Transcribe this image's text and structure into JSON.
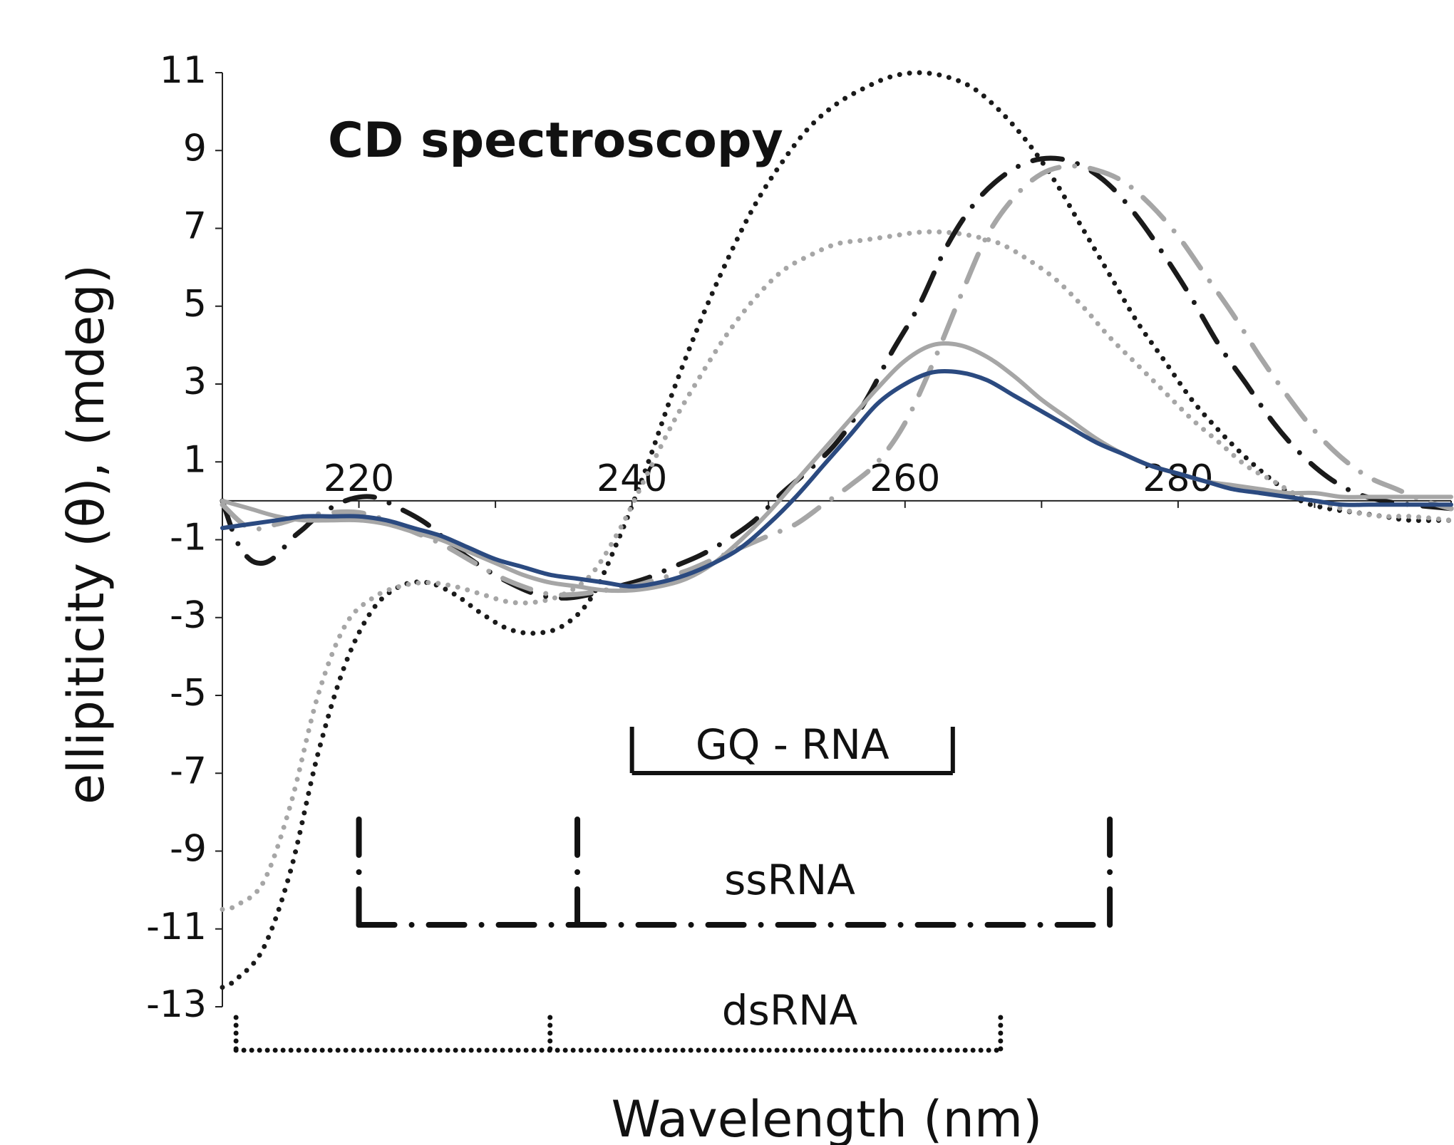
{
  "chart_data": {
    "type": "line",
    "title": "CD spectroscopy",
    "xlabel": "Wavelength (nm)",
    "ylabel": "ellipiticity (θ),  (mdeg)",
    "xlim": [
      210,
      300
    ],
    "ylim": [
      -13,
      11
    ],
    "x_ticks": [
      220,
      240,
      260,
      280
    ],
    "y_ticks": [
      11,
      9,
      7,
      5,
      3,
      1,
      -1,
      -3,
      -5,
      -7,
      -9,
      -11,
      -13
    ],
    "grid": false,
    "series": [
      {
        "name": "dsRNA (black dotted)",
        "style": "dotted",
        "color": "#1a1a1a",
        "x": [
          210,
          211,
          213,
          215,
          217,
          219,
          221,
          223,
          225,
          227,
          229,
          231,
          233,
          235,
          237,
          239,
          241,
          243,
          245,
          247,
          249,
          251,
          253,
          255,
          257,
          259,
          261,
          263,
          265,
          267,
          269,
          271,
          273,
          275,
          277,
          279,
          281,
          283,
          285,
          287,
          289,
          291,
          293,
          295,
          297,
          300
        ],
        "y": [
          -12.5,
          -12.3,
          -11.5,
          -9.5,
          -6.5,
          -4.2,
          -2.8,
          -2.2,
          -2.1,
          -2.4,
          -2.9,
          -3.3,
          -3.4,
          -3.2,
          -2.5,
          -1.0,
          0.8,
          2.8,
          4.6,
          6.2,
          7.6,
          8.7,
          9.6,
          10.2,
          10.6,
          10.9,
          11.0,
          10.9,
          10.6,
          10.0,
          9.2,
          8.2,
          7.0,
          5.8,
          4.6,
          3.6,
          2.6,
          1.8,
          1.1,
          0.5,
          0.0,
          -0.2,
          -0.3,
          -0.4,
          -0.5,
          -0.5
        ]
      },
      {
        "name": "dsRNA (grey dotted)",
        "style": "dotted",
        "color": "#a6a6a6",
        "x": [
          210,
          211,
          213,
          215,
          217,
          219,
          221,
          223,
          225,
          227,
          229,
          231,
          233,
          235,
          237,
          239,
          241,
          243,
          245,
          247,
          249,
          251,
          253,
          255,
          257,
          259,
          261,
          263,
          265,
          267,
          269,
          271,
          273,
          275,
          277,
          279,
          281,
          283,
          285,
          287,
          289,
          291,
          293,
          295,
          297,
          300
        ],
        "y": [
          -10.5,
          -10.4,
          -9.8,
          -7.8,
          -5.0,
          -3.2,
          -2.5,
          -2.2,
          -2.1,
          -2.2,
          -2.4,
          -2.6,
          -2.6,
          -2.4,
          -1.9,
          -0.8,
          0.6,
          2.0,
          3.2,
          4.3,
          5.2,
          5.9,
          6.3,
          6.6,
          6.7,
          6.8,
          6.9,
          6.9,
          6.8,
          6.6,
          6.2,
          5.7,
          5.0,
          4.2,
          3.5,
          2.8,
          2.1,
          1.5,
          0.9,
          0.5,
          0.1,
          -0.1,
          -0.3,
          -0.4,
          -0.4,
          -0.5
        ]
      },
      {
        "name": "ssRNA (black dash-dot)",
        "style": "dashdot",
        "color": "#1a1a1a",
        "x": [
          210,
          211,
          212,
          213,
          214,
          215,
          216,
          217,
          219,
          221,
          223,
          225,
          227,
          229,
          231,
          233,
          235,
          237,
          239,
          241,
          243,
          245,
          247,
          249,
          251,
          253,
          255,
          257,
          259,
          261,
          263,
          265,
          267,
          269,
          271,
          273,
          275,
          277,
          279,
          281,
          283,
          285,
          287,
          289,
          291,
          293,
          295,
          297,
          300
        ],
        "y": [
          0.0,
          -1.0,
          -1.5,
          -1.6,
          -1.4,
          -1.0,
          -0.7,
          -0.4,
          0.0,
          0.1,
          -0.2,
          -0.6,
          -1.2,
          -1.7,
          -2.1,
          -2.4,
          -2.5,
          -2.4,
          -2.2,
          -2.0,
          -1.7,
          -1.4,
          -1.0,
          -0.5,
          0.2,
          0.8,
          1.5,
          2.5,
          3.8,
          5.0,
          6.5,
          7.6,
          8.3,
          8.7,
          8.8,
          8.6,
          8.1,
          7.3,
          6.3,
          5.2,
          4.0,
          3.0,
          2.0,
          1.2,
          0.6,
          0.2,
          0.0,
          -0.1,
          -0.2
        ]
      },
      {
        "name": "ssRNA (grey dash-dot)",
        "style": "dashdot",
        "color": "#a6a6a6",
        "x": [
          210,
          212,
          214,
          216,
          218,
          220,
          222,
          224,
          226,
          228,
          230,
          232,
          234,
          236,
          238,
          240,
          242,
          244,
          246,
          248,
          250,
          252,
          254,
          256,
          258,
          260,
          262,
          264,
          266,
          268,
          270,
          272,
          274,
          276,
          278,
          280,
          282,
          284,
          286,
          288,
          290,
          292,
          294,
          296,
          298,
          300
        ],
        "y": [
          -0.1,
          -0.7,
          -0.6,
          -0.4,
          -0.3,
          -0.3,
          -0.5,
          -0.8,
          -1.1,
          -1.5,
          -1.9,
          -2.2,
          -2.4,
          -2.4,
          -2.3,
          -2.2,
          -2.0,
          -1.8,
          -1.5,
          -1.2,
          -0.9,
          -0.6,
          -0.1,
          0.4,
          1.0,
          2.0,
          3.5,
          5.2,
          6.8,
          7.8,
          8.4,
          8.6,
          8.5,
          8.2,
          7.6,
          6.8,
          5.8,
          4.8,
          3.7,
          2.7,
          1.8,
          1.1,
          0.6,
          0.3,
          0.0,
          -0.2
        ]
      },
      {
        "name": "GQ-RNA (grey solid)",
        "style": "solid",
        "color": "#a6a6a6",
        "x": [
          210,
          212,
          214,
          216,
          218,
          220,
          222,
          224,
          226,
          228,
          230,
          232,
          234,
          236,
          238,
          240,
          242,
          244,
          246,
          248,
          250,
          252,
          254,
          256,
          258,
          260,
          262,
          264,
          266,
          268,
          270,
          272,
          274,
          276,
          278,
          280,
          282,
          284,
          286,
          288,
          290,
          292,
          294,
          296,
          298,
          300
        ],
        "y": [
          0.0,
          -0.2,
          -0.4,
          -0.5,
          -0.5,
          -0.5,
          -0.6,
          -0.8,
          -1.0,
          -1.3,
          -1.6,
          -1.9,
          -2.1,
          -2.2,
          -2.3,
          -2.3,
          -2.2,
          -2.0,
          -1.6,
          -1.0,
          -0.3,
          0.5,
          1.3,
          2.1,
          2.9,
          3.6,
          4.0,
          4.0,
          3.7,
          3.2,
          2.6,
          2.1,
          1.6,
          1.2,
          0.9,
          0.7,
          0.5,
          0.4,
          0.3,
          0.2,
          0.2,
          0.1,
          0.1,
          0.1,
          0.1,
          0.1
        ]
      },
      {
        "name": "GQ-RNA (blue solid)",
        "style": "solid",
        "color": "#2b4a80",
        "x": [
          210,
          212,
          214,
          216,
          218,
          220,
          222,
          224,
          226,
          228,
          230,
          232,
          234,
          236,
          238,
          240,
          242,
          244,
          246,
          248,
          250,
          252,
          254,
          256,
          258,
          260,
          262,
          264,
          266,
          268,
          270,
          272,
          274,
          276,
          278,
          280,
          282,
          284,
          286,
          288,
          290,
          292,
          294,
          296,
          298,
          300
        ],
        "y": [
          -0.7,
          -0.6,
          -0.5,
          -0.4,
          -0.4,
          -0.4,
          -0.5,
          -0.7,
          -0.9,
          -1.2,
          -1.5,
          -1.7,
          -1.9,
          -2.0,
          -2.1,
          -2.2,
          -2.1,
          -1.9,
          -1.6,
          -1.2,
          -0.6,
          0.1,
          0.9,
          1.7,
          2.5,
          3.0,
          3.3,
          3.3,
          3.1,
          2.7,
          2.3,
          1.9,
          1.5,
          1.2,
          0.9,
          0.7,
          0.5,
          0.3,
          0.2,
          0.1,
          0.0,
          -0.1,
          -0.1,
          -0.1,
          -0.1,
          -0.1
        ]
      }
    ],
    "legend": [
      {
        "label": "GQ - RNA",
        "style": "solid",
        "range": [
          240,
          263.5
        ]
      },
      {
        "label": "ssRNA",
        "style": "dashdot",
        "range": [
          220,
          275
        ],
        "mid": 236
      },
      {
        "label": "dsRNA",
        "style": "dotted",
        "range": [
          211,
          267
        ],
        "mid": 234
      }
    ]
  }
}
